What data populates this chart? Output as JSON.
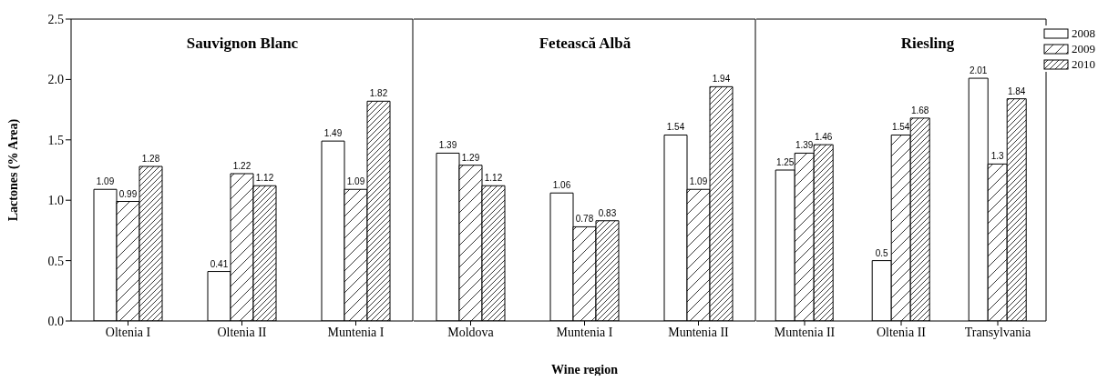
{
  "chart_data": [
    {
      "type": "bar",
      "title": "Sauvignon Blanc",
      "ylabel": "Lactones (% Area)",
      "categories": [
        "Oltenia I",
        "Oltenia II",
        "Muntenia I"
      ],
      "series": [
        {
          "color": "#000000",
          "values": [
            1.09,
            0.41,
            1.49
          ]
        },
        {
          "color": "#000000",
          "values": [
            0.99,
            1.22,
            1.09
          ]
        },
        {
          "color": "#000000",
          "values": [
            1.28,
            1.12,
            1.82
          ]
        }
      ],
      "ylim": [
        0,
        2.5
      ],
      "yticks": [
        "0.0",
        "0.5",
        "1.0",
        "1.5",
        "2.0",
        "2.5"
      ],
      "data_labels": true,
      "grid": false,
      "legend": false
    },
    {
      "type": "bar",
      "title": "Fetească Albă",
      "xlabel": "Wine region",
      "categories": [
        "Moldova",
        "Muntenia I",
        "Muntenia II"
      ],
      "series": [
        {
          "color": "#000000",
          "values": [
            1.39,
            1.06,
            1.54
          ]
        },
        {
          "color": "#000000",
          "values": [
            1.29,
            0.78,
            1.09
          ]
        },
        {
          "color": "#000000",
          "values": [
            1.12,
            0.83,
            1.94
          ]
        }
      ],
      "ylim": [
        0,
        2.5
      ],
      "tick_labels": "x",
      "data_labels": true,
      "grid": false,
      "legend": false
    },
    {
      "type": "bar",
      "title": "Riesling",
      "categories": [
        "Muntenia II",
        "Oltenia II",
        "Transylvania"
      ],
      "series": [
        {
          "name": "2008",
          "color": "#000000",
          "values": [
            1.25,
            0.5,
            2.01
          ]
        },
        {
          "name": "2009",
          "color": "#000000",
          "values": [
            1.39,
            1.54,
            1.3
          ]
        },
        {
          "name": "2010",
          "color": "#000000",
          "values": [
            1.46,
            1.68,
            1.84
          ]
        }
      ],
      "ylim": [
        0,
        2.5
      ],
      "tick_labels": "x",
      "data_labels": true,
      "grid": false,
      "legend": "top right"
    }
  ]
}
